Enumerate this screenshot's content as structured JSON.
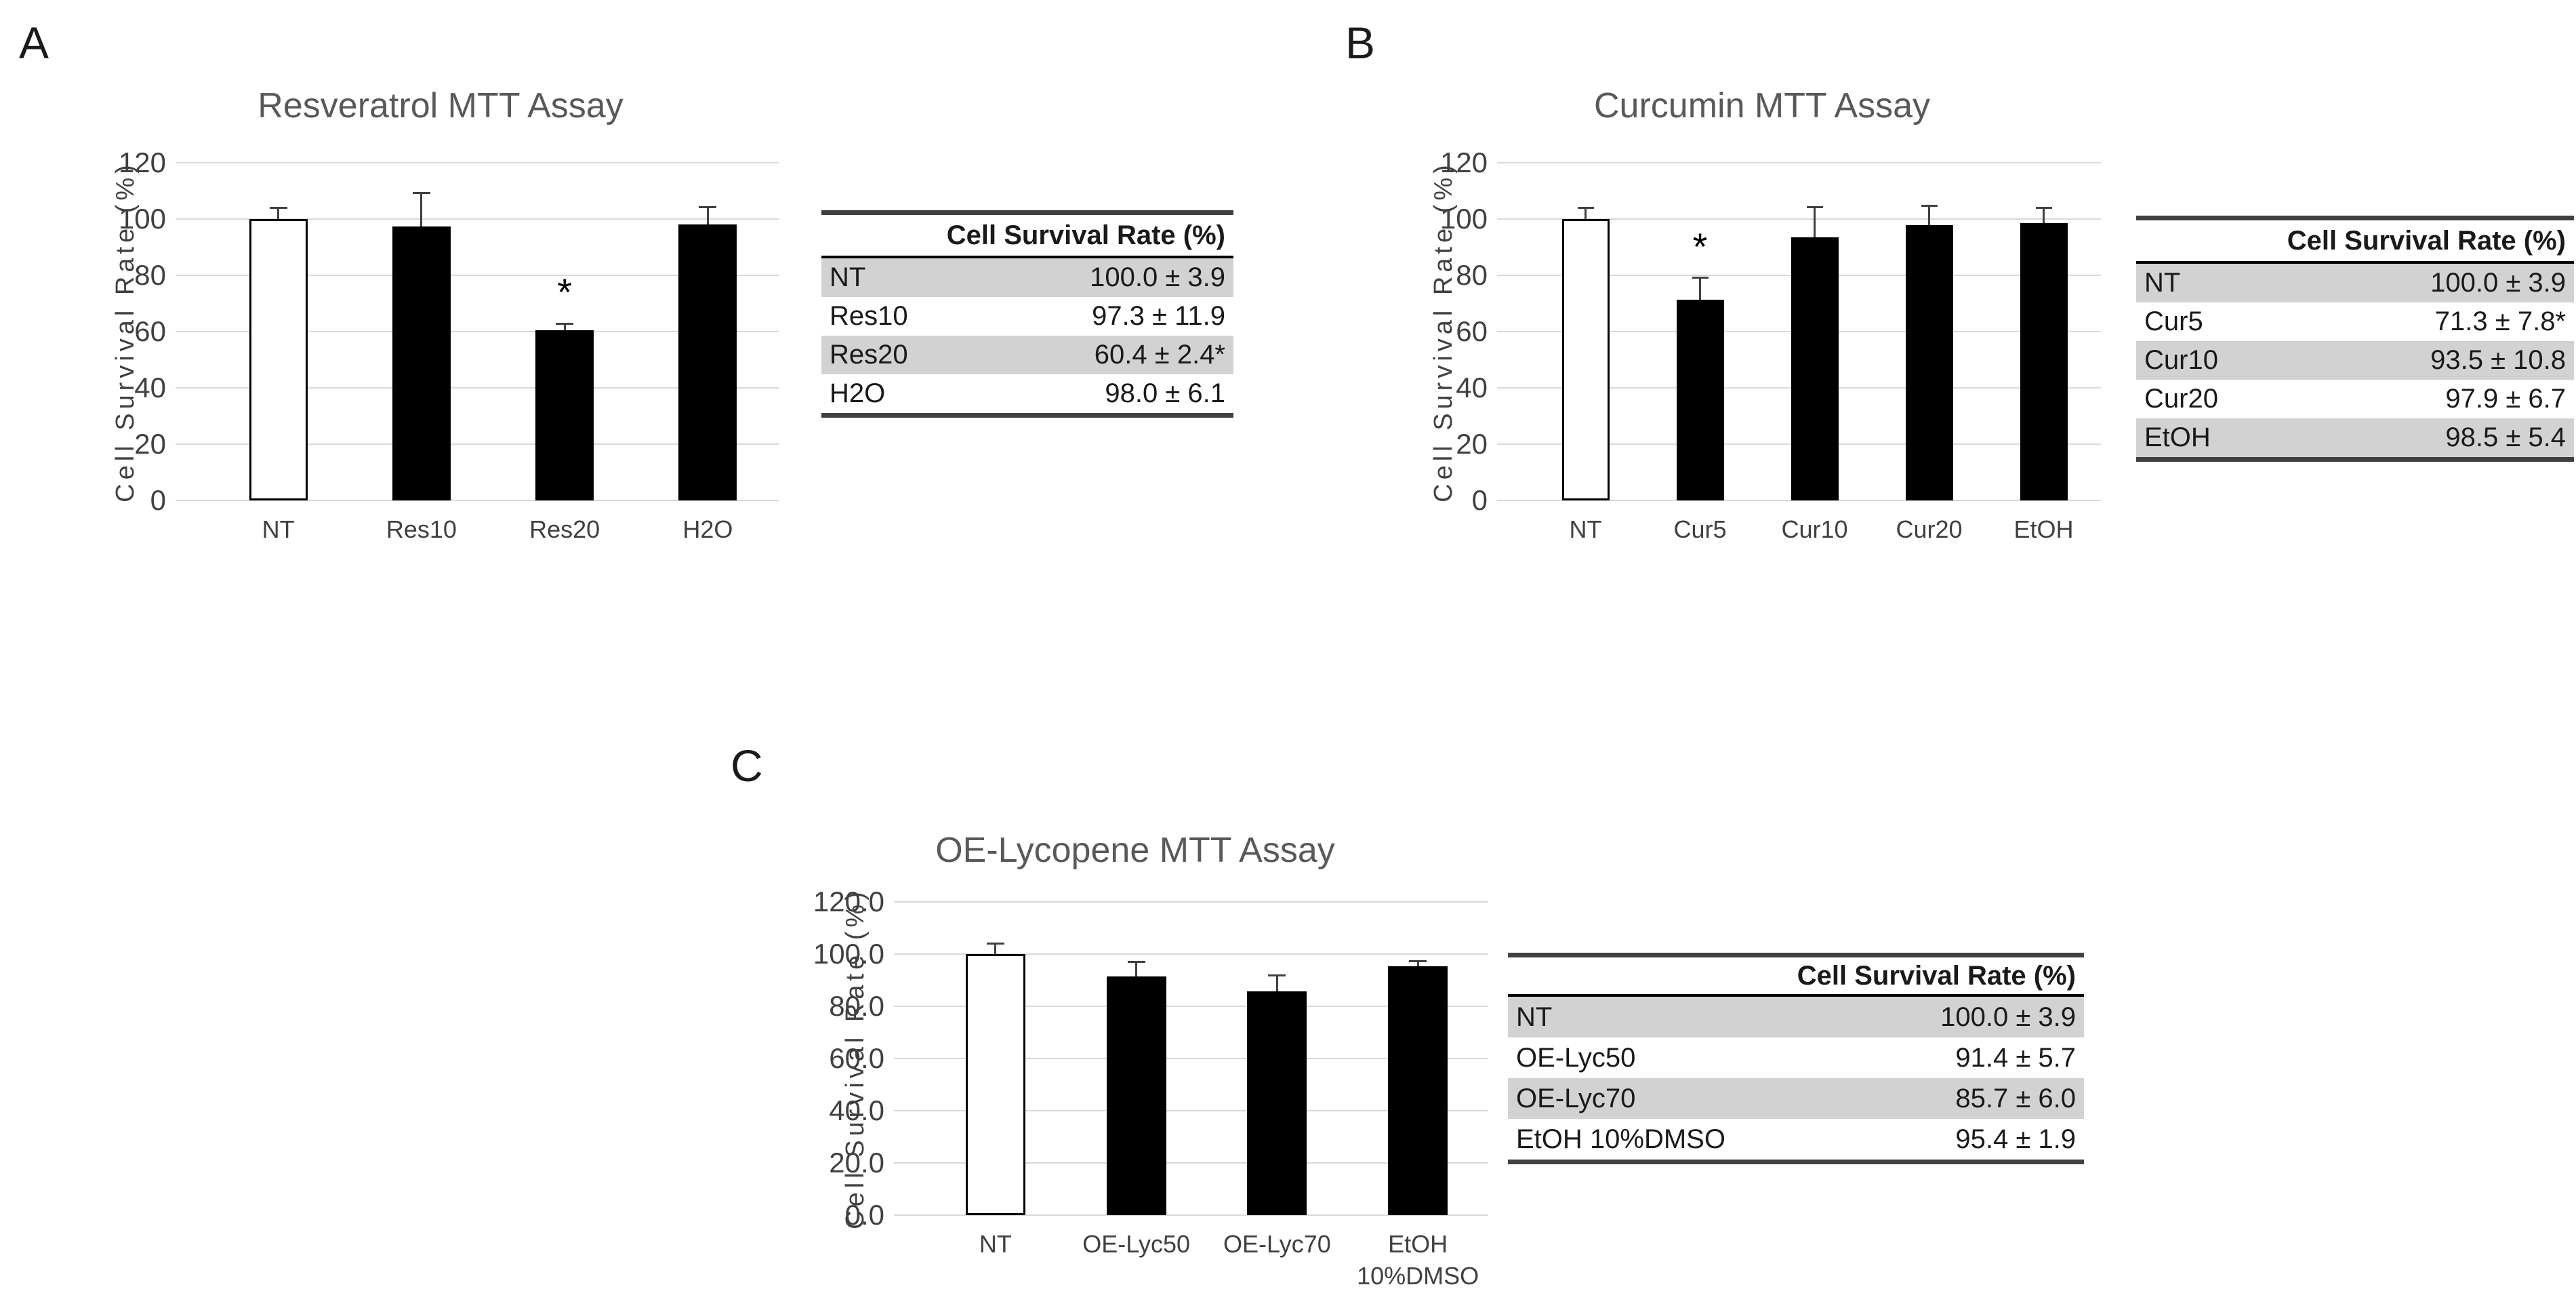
{
  "page": {
    "background": "#ffffff"
  },
  "panels": [
    {
      "letter": "A"
    },
    {
      "letter": "B"
    },
    {
      "letter": "C"
    }
  ],
  "colors": {
    "bar_fill_dark": "#000000",
    "bar_fill_light": "#ffffff",
    "bar_border": "#000000",
    "gridline": "#d9d9d9",
    "axis_text": "#404040",
    "title_text": "#595959",
    "panel_letter": "#1a1a1a",
    "table_stripe": "#d2d2d2",
    "table_border": "#404040",
    "table_header_rule": "#000000",
    "error_bar": "#404040"
  },
  "chart_data": [
    {
      "type": "bar",
      "title": "Resveratrol MTT Assay",
      "ylabel": "Cell Survival Rate (%)",
      "xlabel": "",
      "ylim": [
        0,
        120
      ],
      "ytick_step": 20,
      "ytick_decimals": 0,
      "grid": true,
      "legend": "none",
      "categories": [
        "NT",
        "Res10",
        "Res20",
        "H2O"
      ],
      "values": [
        100.0,
        97.3,
        60.4,
        98.0
      ],
      "error_sd": [
        3.9,
        11.9,
        2.4,
        6.1
      ],
      "significant": [
        false,
        false,
        true,
        false
      ],
      "bar_fills": [
        "white",
        "black",
        "black",
        "black"
      ]
    },
    {
      "type": "bar",
      "title": "Curcumin MTT Assay",
      "ylabel": "Cell Survival Rate (%)",
      "xlabel": "",
      "ylim": [
        0,
        120
      ],
      "ytick_step": 20,
      "ytick_decimals": 0,
      "grid": true,
      "legend": "none",
      "categories": [
        "NT",
        "Cur5",
        "Cur10",
        "Cur20",
        "EtOH"
      ],
      "values": [
        100.0,
        71.3,
        93.5,
        97.9,
        98.5
      ],
      "error_sd": [
        3.9,
        7.8,
        10.8,
        6.7,
        5.4
      ],
      "significant": [
        false,
        true,
        false,
        false,
        false
      ],
      "bar_fills": [
        "white",
        "black",
        "black",
        "black",
        "black"
      ]
    },
    {
      "type": "bar",
      "title": "OE-Lycopene MTT Assay",
      "ylabel": "Cell Survival Rate (%)",
      "xlabel": "",
      "ylim": [
        0,
        120
      ],
      "ytick_step": 20,
      "ytick_decimals": 1,
      "grid": true,
      "legend": "none",
      "categories": [
        "NT",
        "OE-Lyc50",
        "OE-Lyc70",
        "EtOH\n10%DMSO"
      ],
      "values": [
        100.0,
        91.4,
        85.7,
        95.4
      ],
      "error_sd": [
        3.9,
        5.7,
        6.0,
        1.9
      ],
      "significant": [
        false,
        false,
        false,
        false
      ],
      "bar_fills": [
        "white",
        "black",
        "black",
        "black"
      ]
    }
  ],
  "tables": [
    {
      "header": "Cell Survival Rate (%)",
      "rows": [
        {
          "label": "NT",
          "value": "100.0 ± 3.9",
          "shaded": true
        },
        {
          "label": "Res10",
          "value": "97.3 ± 11.9",
          "shaded": false
        },
        {
          "label": "Res20",
          "value": "60.4 ± 2.4*",
          "shaded": true
        },
        {
          "label": "H2O",
          "value": "98.0 ± 6.1",
          "shaded": false
        }
      ]
    },
    {
      "header": "Cell Survival Rate (%)",
      "rows": [
        {
          "label": "NT",
          "value": "100.0 ± 3.9",
          "shaded": true
        },
        {
          "label": "Cur5",
          "value": "71.3 ± 7.8*",
          "shaded": false
        },
        {
          "label": "Cur10",
          "value": "93.5 ± 10.8",
          "shaded": true
        },
        {
          "label": "Cur20",
          "value": "97.9 ± 6.7",
          "shaded": false
        },
        {
          "label": "EtOH",
          "value": "98.5 ± 5.4",
          "shaded": true
        }
      ]
    },
    {
      "header": "Cell Survival Rate (%)",
      "rows": [
        {
          "label": "NT",
          "value": "100.0 ± 3.9",
          "shaded": true
        },
        {
          "label": "OE-Lyc50",
          "value": "91.4 ± 5.7",
          "shaded": false
        },
        {
          "label": "OE-Lyc70",
          "value": "85.7 ± 6.0",
          "shaded": true
        },
        {
          "label": "EtOH 10%DMSO",
          "value": "95.4 ± 1.9",
          "shaded": false
        }
      ]
    }
  ]
}
